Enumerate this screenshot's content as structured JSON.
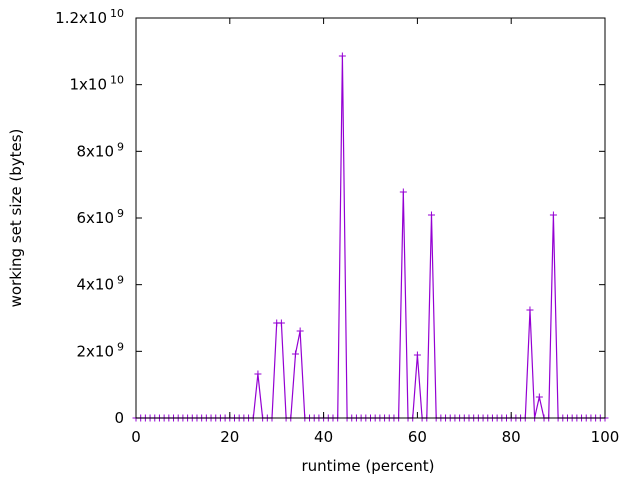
{
  "chart_data": {
    "type": "line",
    "title": "",
    "xlabel": "runtime (percent)",
    "ylabel": "working set size (bytes)",
    "xlim": [
      0,
      100
    ],
    "ylim": [
      0,
      12000000000
    ],
    "x_ticks": [
      0,
      20,
      40,
      60,
      80,
      100
    ],
    "x_tick_labels": [
      "0",
      "20",
      "40",
      "60",
      "80",
      "100"
    ],
    "y_ticks": [
      0,
      2000000000,
      4000000000,
      6000000000,
      8000000000,
      10000000000,
      12000000000
    ],
    "y_tick_labels": [
      {
        "base": "0",
        "exp": ""
      },
      {
        "base": "2x10",
        "exp": "9"
      },
      {
        "base": "4x10",
        "exp": "9"
      },
      {
        "base": "6x10",
        "exp": "9"
      },
      {
        "base": "8x10",
        "exp": "9"
      },
      {
        "base": "1x10",
        "exp": "10"
      },
      {
        "base": "1.2x10",
        "exp": "10"
      }
    ],
    "grid": false,
    "legend": "none",
    "series": [
      {
        "name": "working set size",
        "color": "#9400d3",
        "x_start": 0,
        "x_step": 1,
        "peaks": [
          {
            "x": 26,
            "y": 1320000000
          },
          {
            "x": 30,
            "y": 2850000000
          },
          {
            "x": 31,
            "y": 2850000000
          },
          {
            "x": 34,
            "y": 1920000000
          },
          {
            "x": 35,
            "y": 2610000000
          },
          {
            "x": 44,
            "y": 10860000000
          },
          {
            "x": 57,
            "y": 6780000000
          },
          {
            "x": 60,
            "y": 1890000000
          },
          {
            "x": 63,
            "y": 6090000000
          },
          {
            "x": 84,
            "y": 3240000000
          },
          {
            "x": 86,
            "y": 630000000
          },
          {
            "x": 89,
            "y": 6090000000
          }
        ],
        "default_y": 0
      }
    ]
  }
}
